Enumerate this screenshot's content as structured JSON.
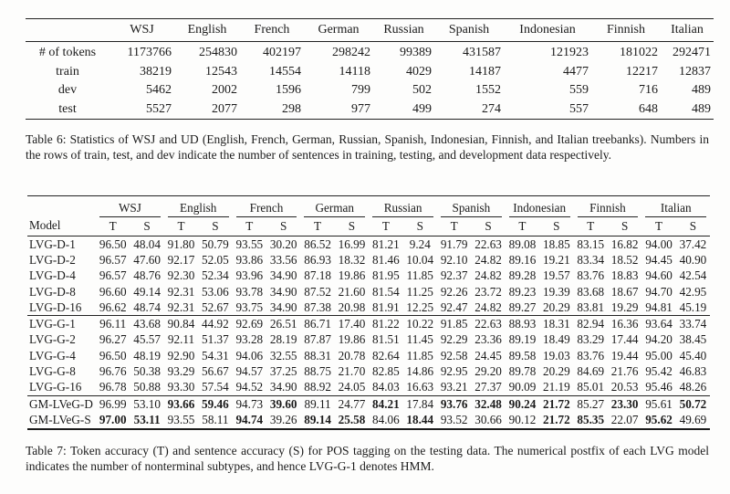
{
  "table6": {
    "columns": [
      "WSJ",
      "English",
      "French",
      "German",
      "Russian",
      "Spanish",
      "Indonesian",
      "Finnish",
      "Italian"
    ],
    "rows": [
      {
        "label": "# of tokens",
        "values": [
          "1173766",
          "254830",
          "402197",
          "298242",
          "99389",
          "431587",
          "121923",
          "181022",
          "292471"
        ]
      },
      {
        "label": "train",
        "values": [
          "38219",
          "12543",
          "14554",
          "14118",
          "4029",
          "14187",
          "4477",
          "12217",
          "12837"
        ]
      },
      {
        "label": "dev",
        "values": [
          "5462",
          "2002",
          "1596",
          "799",
          "502",
          "1552",
          "559",
          "716",
          "489"
        ]
      },
      {
        "label": "test",
        "values": [
          "5527",
          "2077",
          "298",
          "977",
          "499",
          "274",
          "557",
          "648",
          "489"
        ]
      }
    ],
    "caption": "Table 6: Statistics of WSJ and UD (English, French, German, Russian, Spanish, Indonesian, Finnish, and Italian treebanks). Numbers in the rows of train, test, and dev indicate the number of sentences in training, testing, and development data respectively."
  },
  "table7": {
    "model_header": "Model",
    "languages": [
      "WSJ",
      "English",
      "French",
      "German",
      "Russian",
      "Spanish",
      "Indonesian",
      "Finnish",
      "Italian"
    ],
    "subheaders": [
      "T",
      "S"
    ],
    "groups": [
      {
        "rows": [
          {
            "model": "LVG-D-1",
            "values": [
              "96.50",
              "48.04",
              "91.80",
              "50.79",
              "93.55",
              "30.20",
              "86.52",
              "16.99",
              "81.21",
              "9.24",
              "91.79",
              "22.63",
              "89.08",
              "18.85",
              "83.15",
              "16.82",
              "94.00",
              "37.42"
            ]
          },
          {
            "model": "LVG-D-2",
            "values": [
              "96.57",
              "47.60",
              "92.17",
              "52.05",
              "93.86",
              "33.56",
              "86.93",
              "18.32",
              "81.46",
              "10.04",
              "92.10",
              "24.82",
              "89.16",
              "19.21",
              "83.34",
              "18.52",
              "94.45",
              "40.90"
            ]
          },
          {
            "model": "LVG-D-4",
            "values": [
              "96.57",
              "48.76",
              "92.30",
              "52.34",
              "93.96",
              "34.90",
              "87.18",
              "19.86",
              "81.95",
              "11.85",
              "92.37",
              "24.82",
              "89.28",
              "19.57",
              "83.76",
              "18.83",
              "94.60",
              "42.54"
            ]
          },
          {
            "model": "LVG-D-8",
            "values": [
              "96.60",
              "49.14",
              "92.31",
              "53.06",
              "93.78",
              "34.90",
              "87.52",
              "21.60",
              "81.54",
              "11.25",
              "92.26",
              "23.72",
              "89.23",
              "19.39",
              "83.68",
              "18.67",
              "94.70",
              "42.95"
            ]
          },
          {
            "model": "LVG-D-16",
            "values": [
              "96.62",
              "48.74",
              "92.31",
              "52.67",
              "93.75",
              "34.90",
              "87.38",
              "20.98",
              "81.91",
              "12.25",
              "92.47",
              "24.82",
              "89.27",
              "20.29",
              "83.81",
              "19.29",
              "94.81",
              "45.19"
            ]
          }
        ]
      },
      {
        "rows": [
          {
            "model": "LVG-G-1",
            "values": [
              "96.11",
              "43.68",
              "90.84",
              "44.92",
              "92.69",
              "26.51",
              "86.71",
              "17.40",
              "81.22",
              "10.22",
              "91.85",
              "22.63",
              "88.93",
              "18.31",
              "82.94",
              "16.36",
              "93.64",
              "33.74"
            ]
          },
          {
            "model": "LVG-G-2",
            "values": [
              "96.27",
              "45.57",
              "92.11",
              "51.37",
              "93.28",
              "28.19",
              "87.87",
              "19.86",
              "81.51",
              "11.45",
              "92.29",
              "23.36",
              "89.19",
              "18.49",
              "83.29",
              "17.44",
              "94.20",
              "38.45"
            ]
          },
          {
            "model": "LVG-G-4",
            "values": [
              "96.50",
              "48.19",
              "92.90",
              "54.31",
              "94.06",
              "32.55",
              "88.31",
              "20.78",
              "82.64",
              "11.85",
              "92.58",
              "24.45",
              "89.58",
              "19.03",
              "83.76",
              "19.44",
              "95.00",
              "45.40"
            ]
          },
          {
            "model": "LVG-G-8",
            "values": [
              "96.76",
              "50.38",
              "93.29",
              "56.67",
              "94.57",
              "37.25",
              "88.75",
              "21.70",
              "82.85",
              "14.86",
              "92.95",
              "29.20",
              "89.78",
              "20.29",
              "84.69",
              "21.76",
              "95.42",
              "46.83"
            ]
          },
          {
            "model": "LVG-G-16",
            "values": [
              "96.78",
              "50.88",
              "93.30",
              "57.54",
              "94.52",
              "34.90",
              "88.92",
              "24.05",
              "84.03",
              "16.63",
              "93.21",
              "27.37",
              "90.09",
              "21.19",
              "85.01",
              "20.53",
              "95.46",
              "48.26"
            ]
          }
        ]
      },
      {
        "rows": [
          {
            "model": "GM-LVeG-D",
            "values": [
              "96.99",
              "53.10",
              "93.66",
              "59.46",
              "94.73",
              "39.60",
              "89.11",
              "24.77",
              "84.21",
              "17.84",
              "93.76",
              "32.48",
              "90.24",
              "21.72",
              "85.27",
              "23.30",
              "95.61",
              "50.72"
            ],
            "bold": [
              2,
              3,
              5,
              8,
              10,
              11,
              12,
              13,
              15,
              17
            ]
          },
          {
            "model": "GM-LVeG-S",
            "values": [
              "97.00",
              "53.11",
              "93.55",
              "58.11",
              "94.74",
              "39.26",
              "89.14",
              "25.58",
              "84.06",
              "18.44",
              "93.52",
              "30.66",
              "90.12",
              "21.72",
              "85.35",
              "22.07",
              "95.62",
              "49.69"
            ],
            "bold": [
              0,
              1,
              4,
              6,
              7,
              9,
              13,
              14,
              16
            ]
          }
        ]
      }
    ],
    "caption": "Table 7: Token accuracy (T) and sentence accuracy (S) for POS tagging on the testing data. The numerical postfix of each LVG model indicates the number of nonterminal subtypes, and hence LVG-G-1 denotes HMM."
  }
}
